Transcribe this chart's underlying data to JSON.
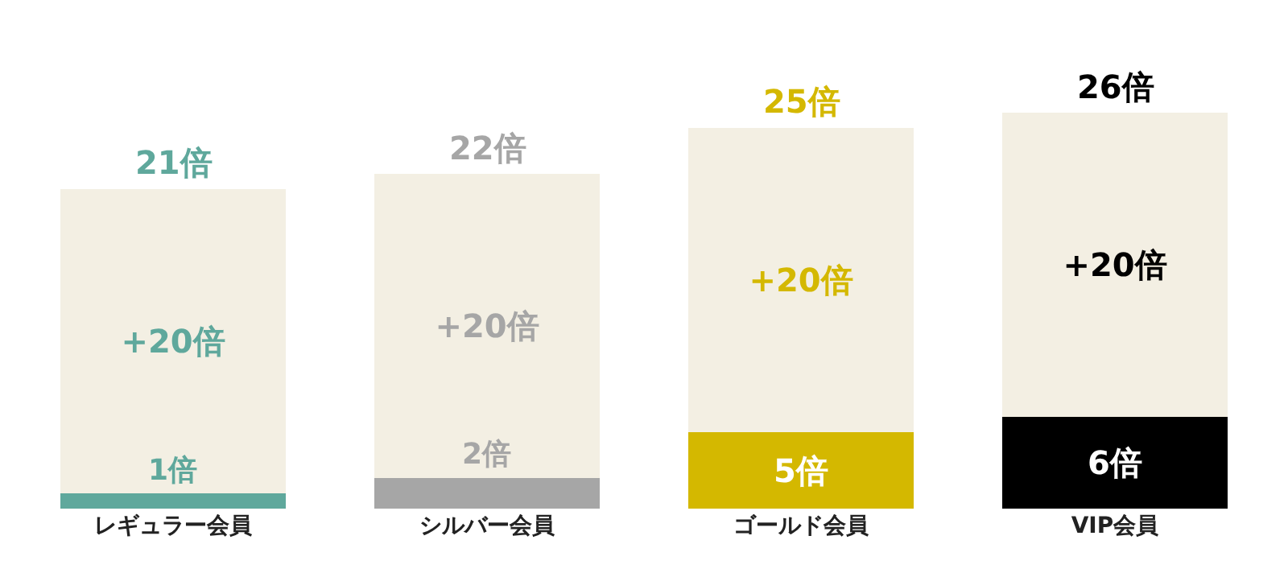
{
  "chart_data": {
    "type": "bar",
    "categories": [
      "レギュラー会員",
      "シルバー会員",
      "ゴールド会員",
      "VIP会員"
    ],
    "stacked": true,
    "legend": false,
    "grid": false,
    "tick_labels": "x",
    "series": [
      {
        "colors": [
          "#5fa89c",
          "#a6a6a6",
          "#d4b800",
          "#000000"
        ],
        "values": [
          1,
          2,
          5,
          6
        ],
        "value_labels": [
          "1倍",
          "2倍",
          "5倍",
          "6倍"
        ]
      },
      {
        "color": "#f3efe3",
        "values": [
          20,
          20,
          20,
          20
        ],
        "value_labels": [
          "+20倍",
          "+20倍",
          "+20倍",
          "+20倍"
        ]
      }
    ],
    "totals": [
      "21倍",
      "22倍",
      "25倍",
      "26倍"
    ]
  }
}
